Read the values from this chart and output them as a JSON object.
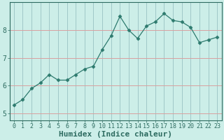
{
  "x": [
    0,
    1,
    2,
    3,
    4,
    5,
    6,
    7,
    8,
    9,
    10,
    11,
    12,
    13,
    14,
    15,
    16,
    17,
    18,
    19,
    20,
    21,
    22,
    23
  ],
  "y": [
    5.3,
    5.5,
    5.9,
    6.1,
    6.4,
    6.2,
    6.2,
    6.4,
    6.6,
    6.7,
    7.3,
    7.8,
    8.5,
    8.0,
    7.7,
    8.15,
    8.3,
    8.6,
    8.35,
    8.3,
    8.1,
    7.55,
    7.65,
    7.75
  ],
  "line_color": "#2d7a6e",
  "marker": "D",
  "marker_size": 2.5,
  "bg_color": "#cceee8",
  "hgrid_color": "#d8a0a0",
  "vgrid_color": "#a0c8c8",
  "xlabel": "Humidex (Indice chaleur)",
  "ylim": [
    4.75,
    9.0
  ],
  "xlim": [
    -0.5,
    23.5
  ],
  "yticks": [
    5,
    6,
    7,
    8
  ],
  "xticks": [
    0,
    1,
    2,
    3,
    4,
    5,
    6,
    7,
    8,
    9,
    10,
    11,
    12,
    13,
    14,
    15,
    16,
    17,
    18,
    19,
    20,
    21,
    22,
    23
  ],
  "axis_color": "#2d6b60",
  "tick_color": "#2d6b60",
  "label_fontsize": 7,
  "tick_fontsize": 6
}
